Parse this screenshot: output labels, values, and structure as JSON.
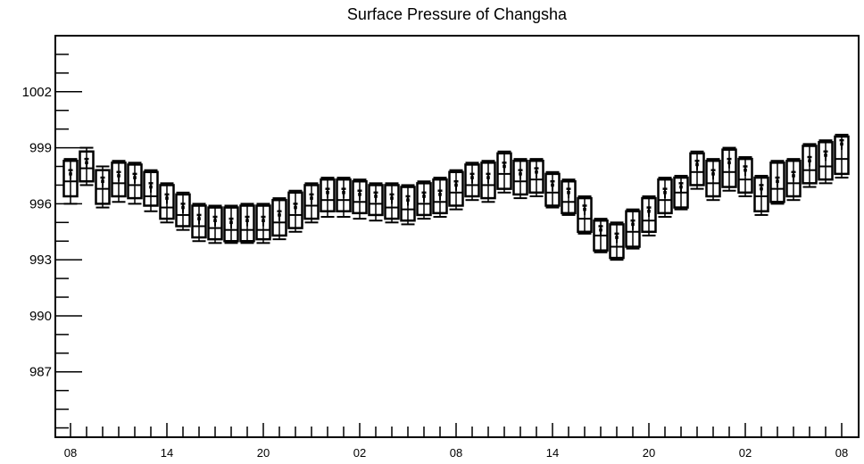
{
  "chart_data": {
    "type": "boxplot",
    "title": "Surface Pressure of Changsha",
    "xlabel": "",
    "ylabel": "",
    "ylim": [
      983.5,
      1005
    ],
    "y_ticks": [
      987,
      990,
      993,
      996,
      999,
      1002
    ],
    "x_tick_labels": [
      "08",
      "14",
      "20",
      "02",
      "08",
      "14",
      "20",
      "02",
      "08"
    ],
    "x_tick_label_positions": [
      0,
      6,
      12,
      18,
      24,
      30,
      36,
      42,
      48
    ],
    "grid": false,
    "series": [
      {
        "x": [
          0,
          1,
          2,
          3,
          4,
          5,
          6,
          7,
          8,
          9,
          10,
          11,
          12,
          13,
          14,
          15,
          16,
          17,
          18,
          19,
          20,
          21,
          22,
          23,
          24,
          25,
          26,
          27,
          28,
          29,
          30,
          31,
          32,
          33,
          34,
          35,
          36,
          37,
          38,
          39,
          40,
          41,
          42,
          43,
          44,
          45,
          46,
          47,
          48
        ],
        "q1": [
          996.4,
          997.2,
          996.0,
          996.4,
          996.3,
          995.9,
          995.2,
          994.8,
          994.2,
          994.1,
          994.0,
          994.0,
          994.1,
          994.3,
          994.7,
          995.2,
          995.6,
          995.6,
          995.5,
          995.4,
          995.2,
          995.1,
          995.4,
          995.5,
          995.9,
          996.4,
          996.3,
          996.8,
          996.5,
          996.6,
          995.9,
          995.5,
          994.5,
          993.5,
          993.1,
          993.7,
          994.5,
          995.5,
          995.8,
          997.0,
          996.4,
          996.9,
          996.6,
          995.6,
          996.1,
          996.4,
          997.1,
          997.3,
          997.6
        ],
        "median": [
          997.2,
          997.9,
          996.8,
          997.1,
          997.0,
          996.4,
          995.8,
          995.4,
          994.8,
          994.7,
          994.6,
          994.6,
          994.6,
          995.0,
          995.4,
          995.9,
          996.2,
          996.2,
          996.1,
          996.0,
          995.8,
          995.7,
          996.0,
          996.1,
          996.6,
          997.0,
          997.0,
          997.6,
          997.2,
          997.3,
          996.6,
          996.1,
          995.2,
          994.3,
          993.7,
          994.5,
          995.1,
          996.2,
          996.6,
          997.7,
          997.1,
          997.7,
          997.3,
          996.4,
          996.8,
          997.1,
          997.8,
          998.0,
          998.4
        ],
        "q3": [
          998.3,
          998.8,
          997.8,
          998.2,
          998.1,
          997.7,
          997.0,
          996.5,
          995.9,
          995.8,
          995.8,
          995.9,
          995.9,
          996.2,
          996.6,
          997.0,
          997.3,
          997.3,
          997.2,
          997.0,
          997.0,
          996.9,
          997.1,
          997.3,
          997.7,
          998.1,
          998.2,
          998.7,
          998.3,
          998.3,
          997.6,
          997.2,
          996.3,
          995.1,
          994.9,
          995.6,
          996.3,
          997.3,
          997.4,
          998.7,
          998.3,
          998.9,
          998.4,
          997.4,
          998.2,
          998.3,
          999.1,
          999.3,
          999.6
        ],
        "whisker_low": [
          996.0,
          997.0,
          995.8,
          996.1,
          996.0,
          995.6,
          995.0,
          994.6,
          994.0,
          993.9,
          993.9,
          993.9,
          993.9,
          994.1,
          994.5,
          995.0,
          995.3,
          995.3,
          995.2,
          995.1,
          995.0,
          994.9,
          995.2,
          995.3,
          995.7,
          996.2,
          996.1,
          996.6,
          996.3,
          996.4,
          995.8,
          995.4,
          994.4,
          993.4,
          993.0,
          993.6,
          994.3,
          995.3,
          995.7,
          996.8,
          996.2,
          996.7,
          996.4,
          995.4,
          996.0,
          996.2,
          996.9,
          997.1,
          997.4
        ],
        "whisker_high": [
          998.4,
          999.0,
          998.0,
          998.3,
          998.2,
          997.8,
          997.1,
          996.6,
          996.0,
          995.9,
          995.9,
          996.0,
          996.0,
          996.3,
          996.7,
          997.1,
          997.4,
          997.4,
          997.3,
          997.1,
          997.1,
          997.0,
          997.2,
          997.4,
          997.8,
          998.2,
          998.3,
          998.8,
          998.4,
          998.4,
          997.7,
          997.3,
          996.4,
          995.2,
          995.0,
          995.7,
          996.4,
          997.4,
          997.5,
          998.8,
          998.4,
          999.0,
          998.5,
          997.5,
          998.3,
          998.4,
          999.2,
          999.4,
          999.7
        ],
        "mean": [
          997.6,
          998.2,
          997.2,
          997.5,
          997.4,
          996.9,
          996.3,
          995.8,
          995.2,
          995.1,
          995.0,
          995.1,
          995.1,
          995.4,
          995.8,
          996.3,
          996.6,
          996.6,
          996.5,
          996.4,
          996.3,
          996.2,
          996.4,
          996.5,
          997.0,
          997.4,
          997.4,
          998.0,
          997.6,
          997.7,
          997.0,
          996.6,
          995.7,
          994.6,
          994.2,
          994.9,
          995.6,
          996.6,
          996.9,
          998.1,
          997.6,
          998.2,
          997.8,
          996.8,
          997.2,
          997.5,
          998.3,
          998.6,
          999.2
        ],
        "mean_err_low": [
          997.3,
          997.9,
          996.9,
          997.2,
          997.1,
          996.6,
          996.0,
          995.5,
          994.9,
          994.8,
          994.7,
          994.8,
          994.8,
          995.1,
          995.5,
          996.0,
          996.3,
          996.3,
          996.2,
          996.1,
          996.0,
          995.9,
          996.1,
          996.2,
          996.7,
          997.1,
          997.1,
          997.7,
          997.3,
          997.4,
          996.7,
          996.3,
          995.4,
          994.3,
          993.9,
          994.6,
          995.3,
          996.3,
          996.6,
          997.8,
          997.3,
          997.9,
          997.5,
          996.5,
          996.9,
          997.2,
          998.0,
          998.3,
          998.9
        ],
        "mean_err_high": [
          997.8,
          998.4,
          997.4,
          997.7,
          997.6,
          997.1,
          996.5,
          996.0,
          995.4,
          995.3,
          995.2,
          995.3,
          995.3,
          995.6,
          996.0,
          996.5,
          996.8,
          996.8,
          996.7,
          996.6,
          996.5,
          996.4,
          996.6,
          996.7,
          997.2,
          997.6,
          997.6,
          998.2,
          997.8,
          997.9,
          997.2,
          996.8,
          995.9,
          994.8,
          994.4,
          995.1,
          995.8,
          996.8,
          997.1,
          998.3,
          997.8,
          998.4,
          998.0,
          997.0,
          997.4,
          997.7,
          998.5,
          998.8,
          999.4
        ]
      }
    ]
  }
}
